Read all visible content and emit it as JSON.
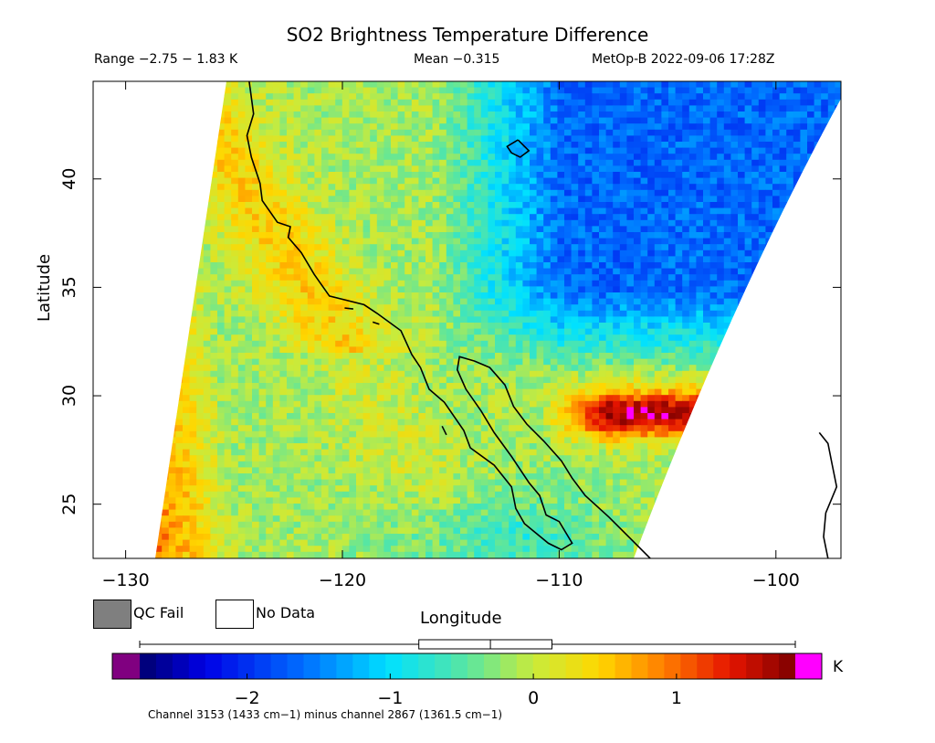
{
  "chart_data": {
    "type": "heatmap",
    "title": "SO2 Brightness Temperature Difference",
    "subtitle_left": "Range −2.75 − 1.83 K",
    "subtitle_center": "Mean −0.315",
    "subtitle_right": "MetOp-B 2022-09-06 17:28Z",
    "xlabel": "Longitude",
    "ylabel": "Latitude",
    "xlim": [
      -131.5,
      -97
    ],
    "ylim": [
      22.5,
      44.5
    ],
    "x_ticks": [
      -130,
      -120,
      -110,
      -100
    ],
    "x_tick_labels": [
      "−130",
      "−120",
      "−110",
      "−100"
    ],
    "y_ticks": [
      25,
      30,
      35,
      40
    ],
    "y_tick_labels": [
      "25",
      "30",
      "35",
      "40"
    ],
    "range": [
      -2.75,
      1.83
    ],
    "mean": -0.315,
    "unit": "K",
    "colorbar": {
      "min": -2.75,
      "max": 1.83,
      "ticks": [
        -2,
        -1,
        0,
        1
      ],
      "tick_labels": [
        "−2",
        "−1",
        "0",
        "1"
      ],
      "box_whisker": {
        "min": -2.75,
        "q1": -0.8,
        "median": -0.3,
        "q3": 0.13,
        "max": 1.83
      }
    },
    "legend": [
      {
        "label": "QC Fail",
        "color": "#7f7f7f"
      },
      {
        "label": "No Data",
        "color": "#ffffff"
      }
    ],
    "footnote": "Channel 3153 (1433 cm−1) minus channel 2867 (1361.5 cm−1)",
    "field_description": {
      "west_edge": "positive values around 0.8 to 1.4 K along western swath edge",
      "central_ocean": "values near 0 K",
      "northeast_interior": "negative values around -1.5 to -2 K",
      "gulf_band_29N": "positive band around 1 to 1.4 K near 29-30N east of 110W"
    }
  },
  "colors": {
    "qc_fail": "#7f7f7f",
    "no_data": "#ffffff",
    "below_range": "#800080",
    "above_range": "#ff00ff"
  }
}
